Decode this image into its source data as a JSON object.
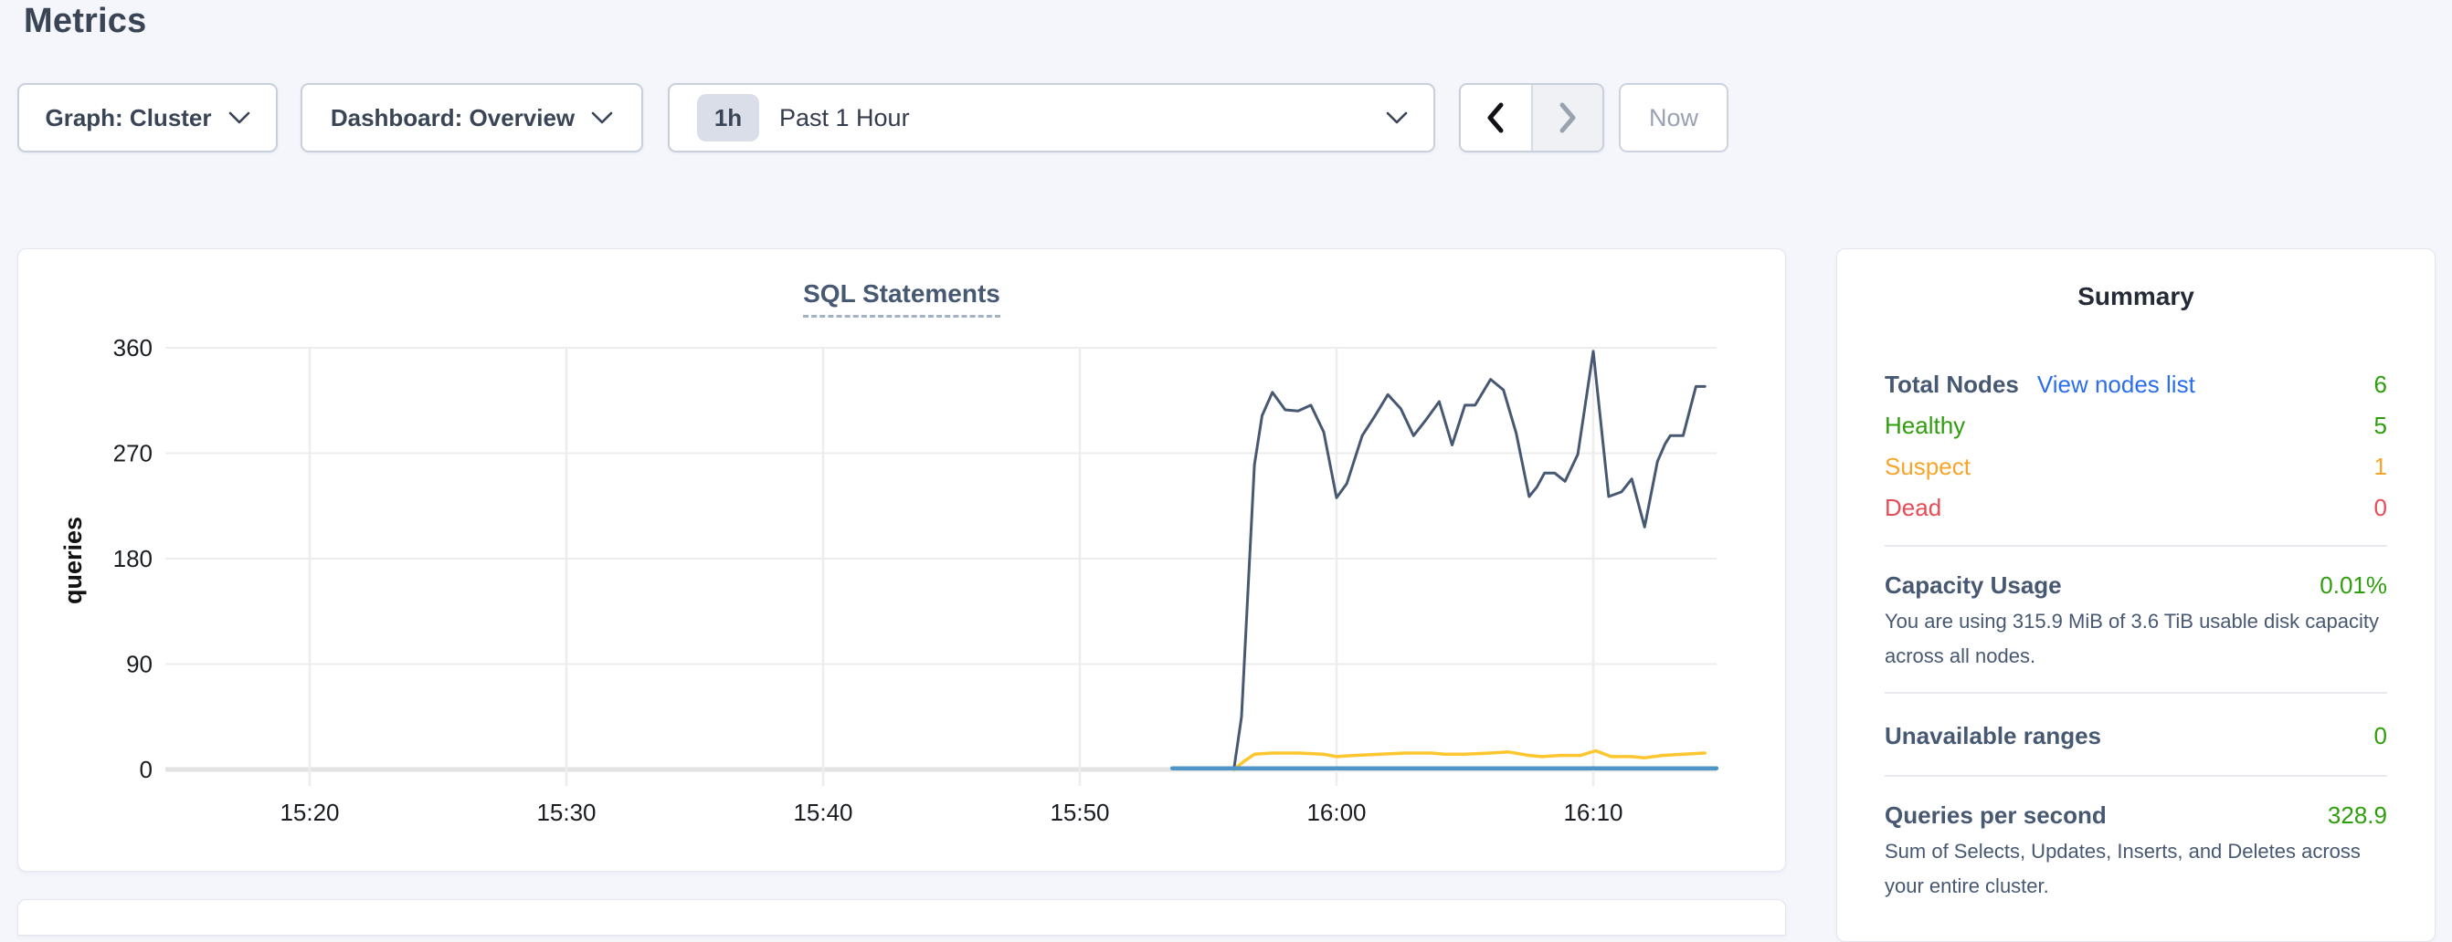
{
  "page": {
    "title": "Metrics",
    "background": "#f4f6fb"
  },
  "toolbar": {
    "graph_dropdown": {
      "label": "Graph: Cluster"
    },
    "dashboard_dropdown": {
      "label": "Dashboard: Overview"
    },
    "time_selector": {
      "badge": "1h",
      "label": "Past 1 Hour"
    },
    "prev_button": {
      "icon": "chevron-left",
      "enabled": true
    },
    "next_button": {
      "icon": "chevron-right",
      "enabled": false
    },
    "now_button": {
      "label": "Now",
      "enabled": false
    }
  },
  "chart_data": {
    "type": "line",
    "title": "SQL Statements",
    "ylabel": "queries",
    "y_ticks": [
      0,
      90,
      180,
      270,
      360
    ],
    "ylim": [
      0,
      360
    ],
    "x_unit": "minutes_after_15:00",
    "x_domain": [
      14.6,
      74.8
    ],
    "x_ticks": [
      {
        "t": 20,
        "label": "15:20"
      },
      {
        "t": 30,
        "label": "15:30"
      },
      {
        "t": 40,
        "label": "15:40"
      },
      {
        "t": 50,
        "label": "15:50"
      },
      {
        "t": 60,
        "label": "16:00"
      },
      {
        "t": 70,
        "label": "16:10"
      }
    ],
    "grid": true,
    "legend": "none",
    "colors": {
      "grid": "#ededed",
      "zero_axis": "#e2e2e2",
      "tick_text": "#191c20"
    },
    "series": [
      {
        "name": "navy-series",
        "color": "#475872",
        "width": 3,
        "points": [
          [
            56.0,
            0
          ],
          [
            56.3,
            45
          ],
          [
            56.8,
            260
          ],
          [
            57.1,
            302
          ],
          [
            57.5,
            322
          ],
          [
            58.0,
            307
          ],
          [
            58.5,
            306
          ],
          [
            59.0,
            311
          ],
          [
            59.5,
            288
          ],
          [
            60.0,
            232
          ],
          [
            60.4,
            244
          ],
          [
            61.0,
            285
          ],
          [
            61.5,
            302
          ],
          [
            62.0,
            320
          ],
          [
            62.5,
            308
          ],
          [
            63.0,
            285
          ],
          [
            63.5,
            299
          ],
          [
            64.0,
            314
          ],
          [
            64.5,
            277
          ],
          [
            65.0,
            311
          ],
          [
            65.4,
            311
          ],
          [
            66.0,
            333
          ],
          [
            66.5,
            324
          ],
          [
            67.0,
            287
          ],
          [
            67.5,
            233
          ],
          [
            67.8,
            241
          ],
          [
            68.1,
            253
          ],
          [
            68.5,
            253
          ],
          [
            68.9,
            246
          ],
          [
            69.4,
            269
          ],
          [
            70.0,
            357
          ],
          [
            70.6,
            233
          ],
          [
            71.1,
            237
          ],
          [
            71.5,
            248
          ],
          [
            72.0,
            207
          ],
          [
            72.5,
            263
          ],
          [
            72.8,
            278
          ],
          [
            73.0,
            285
          ],
          [
            73.5,
            285
          ],
          [
            74.0,
            327
          ],
          [
            74.35,
            327
          ]
        ]
      },
      {
        "name": "yellow-series",
        "color": "#fec62e",
        "width": 3.5,
        "points": [
          [
            56.0,
            0
          ],
          [
            56.4,
            7
          ],
          [
            56.8,
            13
          ],
          [
            57.5,
            14
          ],
          [
            58.5,
            14
          ],
          [
            59.5,
            13
          ],
          [
            60.0,
            11
          ],
          [
            60.7,
            12
          ],
          [
            61.7,
            13
          ],
          [
            62.7,
            14
          ],
          [
            63.7,
            14
          ],
          [
            64.2,
            13
          ],
          [
            65.0,
            13
          ],
          [
            66.0,
            14
          ],
          [
            66.7,
            15
          ],
          [
            67.5,
            12
          ],
          [
            68.0,
            11
          ],
          [
            68.7,
            12
          ],
          [
            69.5,
            12
          ],
          [
            70.1,
            16
          ],
          [
            70.7,
            11
          ],
          [
            71.5,
            11
          ],
          [
            72.0,
            10
          ],
          [
            72.7,
            12
          ],
          [
            73.5,
            13
          ],
          [
            74.35,
            14
          ]
        ]
      },
      {
        "name": "blue-series",
        "color": "#4e94c9",
        "width": 4.5,
        "points": [
          [
            53.6,
            1
          ],
          [
            74.8,
            1
          ]
        ]
      }
    ]
  },
  "summary": {
    "title": "Summary",
    "rows": [
      {
        "label": "Total Nodes",
        "link": "View nodes list",
        "value": "6",
        "label_color": "#475872",
        "link_color": "#2a6ded",
        "value_color": "#2f9e0c",
        "label_bold": true
      },
      {
        "label": "Healthy",
        "value": "5",
        "label_color": "#2f9e0c",
        "value_color": "#2f9e0c"
      },
      {
        "label": "Suspect",
        "value": "1",
        "label_color": "#f7a42a",
        "value_color": "#f7a42a"
      },
      {
        "label": "Dead",
        "value": "0",
        "label_color": "#e64c55",
        "value_color": "#e64c55"
      }
    ],
    "sections": [
      {
        "label": "Capacity Usage",
        "value": "0.01%",
        "value_color": "#2f9e0c",
        "description": "You are using 315.9 MiB of 3.6 TiB usable disk capacity across all nodes."
      },
      {
        "label": "Unavailable ranges",
        "value": "0",
        "value_color": "#2f9e0c",
        "description": ""
      },
      {
        "label": "Queries per second",
        "value": "328.9",
        "value_color": "#2f9e0c",
        "description": "Sum of Selects, Updates, Inserts, and Deletes across your entire cluster."
      }
    ]
  }
}
